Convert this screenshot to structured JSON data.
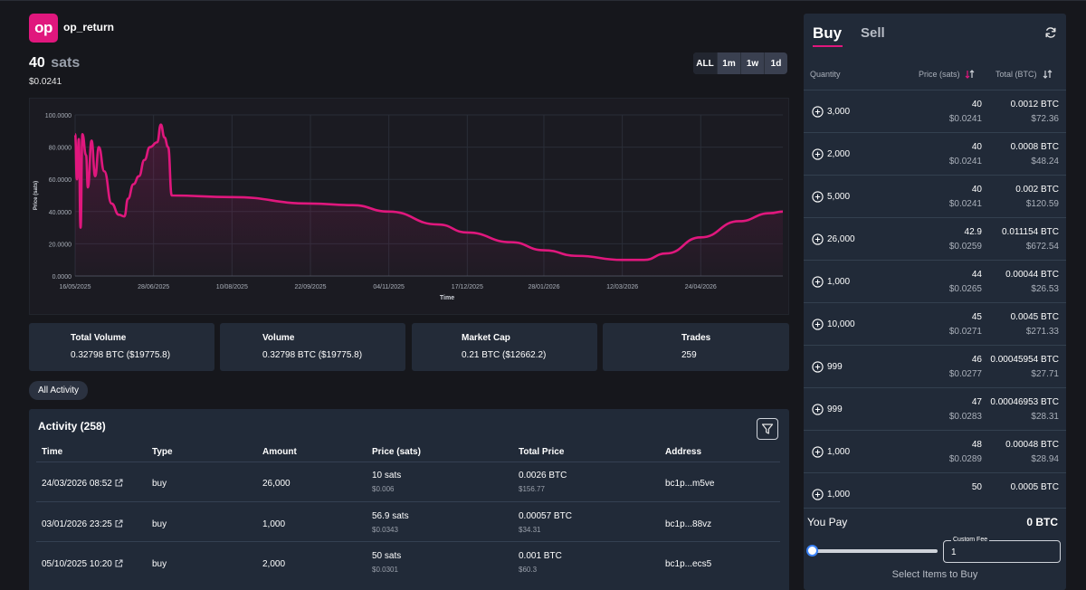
{
  "brand": {
    "logo_text": "op",
    "name": "op_return"
  },
  "price": {
    "value": "40",
    "unit": "sats",
    "usd": "$0.0241"
  },
  "range_tabs": [
    "ALL",
    "1m",
    "1w",
    "1d"
  ],
  "chart_data": {
    "type": "area",
    "xlabel": "Time",
    "ylabel": "Price (sats)",
    "ylim": [
      0,
      100
    ],
    "y_ticks": [
      "0.0000",
      "20.0000",
      "40.0000",
      "60.0000",
      "80.0000",
      "100.0000"
    ],
    "x_ticks": [
      "16/05/2025",
      "28/06/2025",
      "10/08/2025",
      "22/09/2025",
      "04/11/2025",
      "17/12/2025",
      "28/01/2026",
      "12/03/2026",
      "24/04/2026"
    ],
    "color": "#e0177d",
    "points": [
      [
        "16/05/2025",
        88
      ],
      [
        "17/05/2025",
        60
      ],
      [
        "18/05/2025",
        85
      ],
      [
        "19/05/2025",
        30
      ],
      [
        "20/05/2025",
        88
      ],
      [
        "22/05/2025",
        75
      ],
      [
        "23/05/2025",
        55
      ],
      [
        "25/05/2025",
        84
      ],
      [
        "27/05/2025",
        62
      ],
      [
        "29/05/2025",
        80
      ],
      [
        "01/06/2025",
        65
      ],
      [
        "05/06/2025",
        45
      ],
      [
        "09/06/2025",
        38
      ],
      [
        "12/06/2025",
        37
      ],
      [
        "14/06/2025",
        48
      ],
      [
        "17/06/2025",
        57
      ],
      [
        "20/06/2025",
        62
      ],
      [
        "23/06/2025",
        72
      ],
      [
        "26/06/2025",
        80
      ],
      [
        "30/06/2025",
        83
      ],
      [
        "02/07/2025",
        94
      ],
      [
        "04/07/2025",
        86
      ],
      [
        "06/07/2025",
        80
      ],
      [
        "08/07/2025",
        50
      ],
      [
        "10/08/2025",
        49
      ],
      [
        "22/09/2025",
        45
      ],
      [
        "15/10/2025",
        44
      ],
      [
        "04/11/2025",
        40
      ],
      [
        "01/12/2025",
        32
      ],
      [
        "17/12/2025",
        27
      ],
      [
        "10/01/2026",
        21
      ],
      [
        "28/01/2026",
        16
      ],
      [
        "15/02/2026",
        12.5
      ],
      [
        "12/03/2026",
        10
      ],
      [
        "24/03/2026",
        10
      ],
      [
        "05/04/2026",
        14
      ],
      [
        "24/04/2026",
        24
      ],
      [
        "15/05/2026",
        34
      ],
      [
        "01/06/2026",
        39
      ],
      [
        "08/06/2026",
        40
      ]
    ]
  },
  "stats": [
    {
      "title": "Total Volume",
      "value": "0.32798 BTC ($19775.8)"
    },
    {
      "title": "Volume",
      "value": "0.32798 BTC ($19775.8)"
    },
    {
      "title": "Market Cap",
      "value": "0.21 BTC ($12662.2)"
    },
    {
      "title": "Trades",
      "value": "259"
    }
  ],
  "all_activity_label": "All Activity",
  "activity": {
    "title": "Activity (258)",
    "columns": [
      "Time",
      "Type",
      "Amount",
      "Price (sats)",
      "Total Price",
      "Address"
    ],
    "rows": [
      {
        "time": "24/03/2026 08:52",
        "type": "buy",
        "amount": "26,000",
        "price": "10 sats",
        "price_usd": "$0.006",
        "total": "0.0026 BTC",
        "total_usd": "$156.77",
        "address": "bc1p...m5ve"
      },
      {
        "time": "03/01/2026 23:25",
        "type": "buy",
        "amount": "1,000",
        "price": "56.9 sats",
        "price_usd": "$0.0343",
        "total": "0.00057 BTC",
        "total_usd": "$34.31",
        "address": "bc1p...88vz"
      },
      {
        "time": "05/10/2025 10:20",
        "type": "buy",
        "amount": "2,000",
        "price": "50 sats",
        "price_usd": "$0.0301",
        "total": "0.001 BTC",
        "total_usd": "$60.3",
        "address": "bc1p...ecs5"
      }
    ]
  },
  "panel": {
    "tab_buy": "Buy",
    "tab_sell": "Sell",
    "col_quantity": "Quantity",
    "col_price": "Price (sats)",
    "col_total": "Total (BTC)",
    "orders": [
      {
        "qty": "3,000",
        "price": "40",
        "price_usd": "$0.0241",
        "total": "0.0012 BTC",
        "total_usd": "$72.36"
      },
      {
        "qty": "2,000",
        "price": "40",
        "price_usd": "$0.0241",
        "total": "0.0008 BTC",
        "total_usd": "$48.24"
      },
      {
        "qty": "5,000",
        "price": "40",
        "price_usd": "$0.0241",
        "total": "0.002 BTC",
        "total_usd": "$120.59"
      },
      {
        "qty": "26,000",
        "price": "42.9",
        "price_usd": "$0.0259",
        "total": "0.011154 BTC",
        "total_usd": "$672.54"
      },
      {
        "qty": "1,000",
        "price": "44",
        "price_usd": "$0.0265",
        "total": "0.00044 BTC",
        "total_usd": "$26.53"
      },
      {
        "qty": "10,000",
        "price": "45",
        "price_usd": "$0.0271",
        "total": "0.0045 BTC",
        "total_usd": "$271.33"
      },
      {
        "qty": "999",
        "price": "46",
        "price_usd": "$0.0277",
        "total": "0.00045954 BTC",
        "total_usd": "$27.71"
      },
      {
        "qty": "999",
        "price": "47",
        "price_usd": "$0.0283",
        "total": "0.00046953 BTC",
        "total_usd": "$28.31"
      },
      {
        "qty": "1,000",
        "price": "48",
        "price_usd": "$0.0289",
        "total": "0.00048 BTC",
        "total_usd": "$28.94"
      },
      {
        "qty": "1,000",
        "price": "50",
        "price_usd": "",
        "total": "0.0005 BTC",
        "total_usd": ""
      }
    ],
    "you_pay_label": "You Pay",
    "you_pay_value": "0 BTC",
    "fee_slider_level": 0,
    "custom_fee_label": "Custom Fee",
    "custom_fee_value": "1",
    "select_items_label": "Select Items to Buy"
  }
}
